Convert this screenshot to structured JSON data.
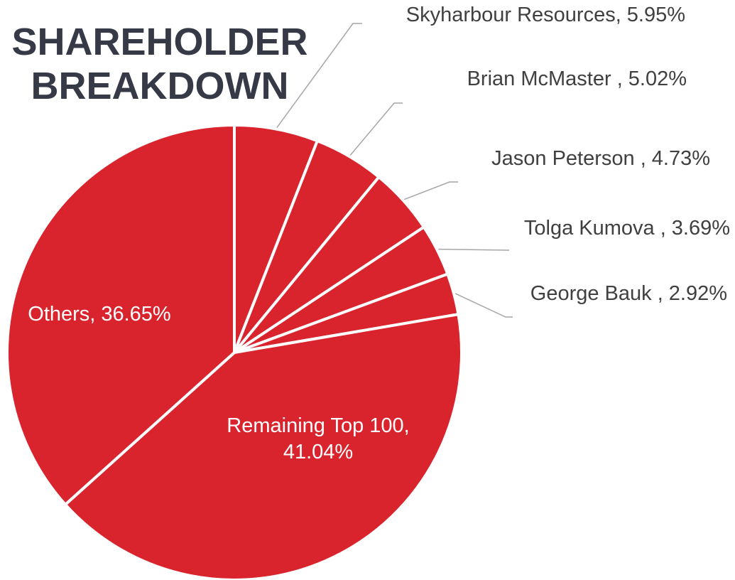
{
  "chart_data": {
    "type": "pie",
    "title": "SHAREHOLDER BREAKDOWN",
    "categories": [
      "Skyharbour Resources,",
      "Brian McMaster ,",
      "Jason Peterson ,",
      "Tolga Kumova ,",
      "George Bauk ,",
      "Remaining Top 100,",
      "Others,"
    ],
    "values": [
      5.95,
      5.02,
      4.73,
      3.69,
      2.92,
      41.04,
      36.65
    ],
    "value_labels": [
      "5.95%",
      "5.02%",
      "4.73%",
      "3.69%",
      "2.92%",
      "41.04%",
      "36.65%"
    ],
    "color": "#d9232d"
  }
}
